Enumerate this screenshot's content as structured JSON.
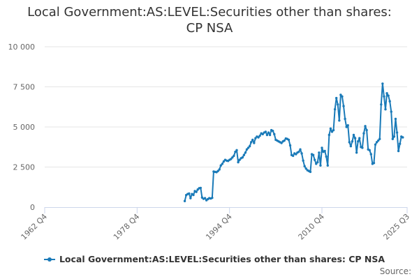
{
  "chart": {
    "title_line1": "Local Government:AS:LEVEL:Securities other than shares:",
    "title_line2": "CP NSA",
    "legend_label": "Local Government:AS:LEVEL:Securities other than shares: CP NSA",
    "source_label": "Source:"
  },
  "colors": {
    "series": "#1a7ab8",
    "grid": "#e6e6e6",
    "axis": "#ccd6eb",
    "text": "#333333",
    "muted": "#666666"
  },
  "chart_data": {
    "type": "line",
    "title": "Local Government:AS:LEVEL:Securities other than shares: CP NSA",
    "xlabel": "",
    "ylabel": "",
    "grid": true,
    "legend_position": "bottom",
    "ylim": [
      0,
      10000
    ],
    "y_ticks": [
      {
        "value": 0,
        "label": "0"
      },
      {
        "value": 2500,
        "label": "2 500"
      },
      {
        "value": 5000,
        "label": "5 000"
      },
      {
        "value": 7500,
        "label": "7 500"
      },
      {
        "value": 10000,
        "label": "10 000"
      }
    ],
    "x_ticks": [
      {
        "value": 1962.75,
        "label": "1962 Q4"
      },
      {
        "value": 1978.75,
        "label": "1978 Q4"
      },
      {
        "value": 1994.75,
        "label": "1994 Q4"
      },
      {
        "value": 2010.75,
        "label": "2010 Q4"
      },
      {
        "value": 2025.5,
        "label": "2025 Q3"
      }
    ],
    "xlim": [
      1962.75,
      2025.5
    ],
    "series": [
      {
        "name": "Local Government:AS:LEVEL:Securities other than shares: CP NSA",
        "points": [
          [
            1987.0,
            380
          ],
          [
            1987.25,
            750
          ],
          [
            1987.5,
            820
          ],
          [
            1987.75,
            850
          ],
          [
            1988.0,
            560
          ],
          [
            1988.25,
            820
          ],
          [
            1988.5,
            760
          ],
          [
            1988.75,
            1000
          ],
          [
            1989.0,
            950
          ],
          [
            1989.25,
            1100
          ],
          [
            1989.5,
            1180
          ],
          [
            1989.75,
            1200
          ],
          [
            1990.0,
            600
          ],
          [
            1990.25,
            520
          ],
          [
            1990.5,
            560
          ],
          [
            1990.75,
            430
          ],
          [
            1991.0,
            500
          ],
          [
            1991.25,
            560
          ],
          [
            1991.5,
            540
          ],
          [
            1991.75,
            580
          ],
          [
            1992.0,
            2220
          ],
          [
            1992.25,
            2200
          ],
          [
            1992.5,
            2180
          ],
          [
            1992.75,
            2250
          ],
          [
            1993.0,
            2350
          ],
          [
            1993.25,
            2600
          ],
          [
            1993.5,
            2700
          ],
          [
            1993.75,
            2850
          ],
          [
            1994.0,
            2950
          ],
          [
            1994.25,
            2900
          ],
          [
            1994.5,
            2880
          ],
          [
            1994.75,
            2950
          ],
          [
            1995.0,
            3000
          ],
          [
            1995.25,
            3100
          ],
          [
            1995.5,
            3200
          ],
          [
            1995.75,
            3450
          ],
          [
            1996.0,
            3550
          ],
          [
            1996.25,
            2800
          ],
          [
            1996.5,
            2950
          ],
          [
            1996.75,
            3050
          ],
          [
            1997.0,
            3100
          ],
          [
            1997.25,
            3250
          ],
          [
            1997.5,
            3400
          ],
          [
            1997.75,
            3600
          ],
          [
            1998.0,
            3700
          ],
          [
            1998.25,
            3800
          ],
          [
            1998.5,
            4050
          ],
          [
            1998.75,
            4200
          ],
          [
            1999.0,
            4000
          ],
          [
            1999.25,
            4300
          ],
          [
            1999.5,
            4400
          ],
          [
            1999.75,
            4350
          ],
          [
            2000.0,
            4450
          ],
          [
            2000.25,
            4600
          ],
          [
            2000.5,
            4550
          ],
          [
            2000.75,
            4650
          ],
          [
            2001.0,
            4700
          ],
          [
            2001.25,
            4500
          ],
          [
            2001.5,
            4650
          ],
          [
            2001.75,
            4500
          ],
          [
            2002.0,
            4800
          ],
          [
            2002.25,
            4750
          ],
          [
            2002.5,
            4550
          ],
          [
            2002.75,
            4200
          ],
          [
            2003.0,
            4150
          ],
          [
            2003.25,
            4100
          ],
          [
            2003.5,
            4050
          ],
          [
            2003.75,
            4000
          ],
          [
            2004.0,
            4100
          ],
          [
            2004.25,
            4150
          ],
          [
            2004.5,
            4280
          ],
          [
            2004.75,
            4250
          ],
          [
            2005.0,
            4200
          ],
          [
            2005.25,
            3850
          ],
          [
            2005.5,
            3250
          ],
          [
            2005.75,
            3200
          ],
          [
            2006.0,
            3350
          ],
          [
            2006.25,
            3300
          ],
          [
            2006.5,
            3400
          ],
          [
            2006.75,
            3450
          ],
          [
            2007.0,
            3600
          ],
          [
            2007.25,
            3350
          ],
          [
            2007.5,
            2900
          ],
          [
            2007.75,
            2550
          ],
          [
            2008.0,
            2400
          ],
          [
            2008.25,
            2300
          ],
          [
            2008.5,
            2250
          ],
          [
            2008.75,
            2200
          ],
          [
            2009.0,
            3300
          ],
          [
            2009.25,
            3250
          ],
          [
            2009.5,
            2950
          ],
          [
            2009.75,
            2700
          ],
          [
            2010.0,
            2800
          ],
          [
            2010.25,
            3400
          ],
          [
            2010.5,
            2600
          ],
          [
            2010.75,
            3700
          ],
          [
            2011.0,
            3450
          ],
          [
            2011.25,
            3500
          ],
          [
            2011.5,
            3150
          ],
          [
            2011.75,
            2600
          ],
          [
            2012.0,
            4500
          ],
          [
            2012.25,
            4900
          ],
          [
            2012.5,
            4700
          ],
          [
            2012.75,
            4800
          ],
          [
            2013.0,
            6100
          ],
          [
            2013.25,
            6800
          ],
          [
            2013.5,
            6400
          ],
          [
            2013.75,
            5400
          ],
          [
            2014.0,
            7000
          ],
          [
            2014.25,
            6900
          ],
          [
            2014.5,
            6300
          ],
          [
            2014.75,
            5500
          ],
          [
            2015.0,
            5000
          ],
          [
            2015.25,
            5100
          ],
          [
            2015.5,
            4050
          ],
          [
            2015.75,
            3800
          ],
          [
            2016.0,
            4100
          ],
          [
            2016.25,
            4500
          ],
          [
            2016.5,
            4300
          ],
          [
            2016.75,
            3400
          ],
          [
            2017.0,
            4100
          ],
          [
            2017.25,
            4300
          ],
          [
            2017.5,
            3750
          ],
          [
            2017.75,
            3700
          ],
          [
            2018.0,
            4600
          ],
          [
            2018.25,
            5050
          ],
          [
            2018.5,
            4800
          ],
          [
            2018.75,
            3600
          ],
          [
            2019.0,
            3550
          ],
          [
            2019.25,
            3300
          ],
          [
            2019.5,
            2700
          ],
          [
            2019.75,
            2750
          ],
          [
            2020.0,
            3900
          ],
          [
            2020.25,
            4050
          ],
          [
            2020.5,
            4150
          ],
          [
            2020.75,
            4250
          ],
          [
            2021.0,
            6400
          ],
          [
            2021.25,
            7700
          ],
          [
            2021.5,
            6900
          ],
          [
            2021.75,
            6100
          ],
          [
            2022.0,
            7100
          ],
          [
            2022.25,
            6950
          ],
          [
            2022.5,
            6600
          ],
          [
            2022.75,
            5950
          ],
          [
            2023.0,
            4250
          ],
          [
            2023.25,
            4400
          ],
          [
            2023.5,
            5500
          ],
          [
            2023.75,
            4650
          ],
          [
            2024.0,
            3500
          ],
          [
            2024.25,
            3950
          ],
          [
            2024.5,
            4400
          ],
          [
            2024.75,
            4350
          ]
        ]
      }
    ]
  }
}
